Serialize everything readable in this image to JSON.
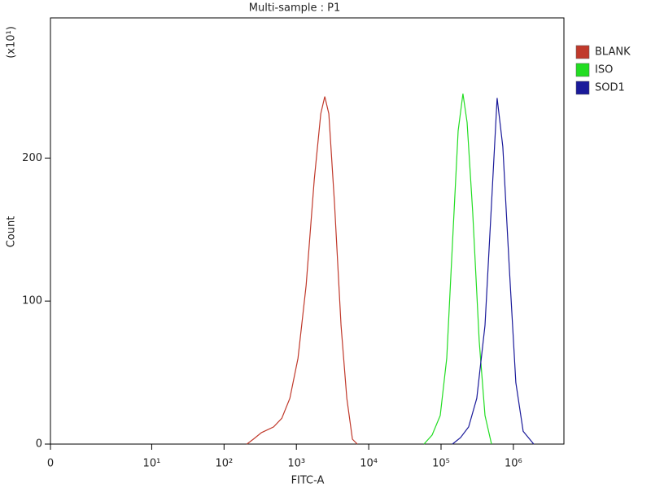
{
  "chart_data": {
    "type": "line",
    "title": "Multi-sample : P1",
    "x_label": "FITC-A",
    "y_label": "Count",
    "y_multiplier": "(x10¹)",
    "xscale": "log",
    "xlim": [
      0,
      5000000
    ],
    "xticks": [
      0,
      {
        "value": 10,
        "label": "10¹"
      },
      {
        "value": 100,
        "label": "10²"
      },
      {
        "value": 1000,
        "label": "10³"
      },
      {
        "value": 10000,
        "label": "10⁴"
      },
      {
        "value": 100000,
        "label": "10⁵"
      },
      {
        "value": 1000000,
        "label": "10⁶"
      }
    ],
    "ylim": [
      0,
      298
    ],
    "yticks": [
      0,
      100,
      200
    ],
    "legend": "right",
    "series": [
      {
        "name": "BLANK",
        "color": "#c0392b",
        "x": [
          207,
          254,
          329,
          484,
          628,
          813,
          1053,
          1364,
          1766,
          2174,
          2472,
          2812,
          3373,
          4149,
          4976,
          5961,
          6964
        ],
        "values": [
          0,
          3.4,
          8,
          12,
          18,
          32,
          60,
          111,
          185,
          231,
          243,
          231,
          168,
          83,
          32,
          3.4,
          0
        ]
      },
      {
        "name": "ISO",
        "color": "#22dd22",
        "x": [
          58100,
          75200,
          97500,
          120000,
          143700,
          172200,
          201000,
          229000,
          274000,
          337000,
          405000,
          498000
        ],
        "values": [
          0,
          6.3,
          20,
          60,
          140,
          219,
          245,
          225,
          162,
          72,
          20,
          0
        ]
      },
      {
        "name": "SOD1",
        "color": "#1a1a9a",
        "x": [
          143700,
          186000,
          241000,
          312000,
          405000,
          498000,
          596000,
          714000,
          879000,
          1081000,
          1365000,
          1910000
        ],
        "values": [
          0,
          4.5,
          12,
          32,
          83,
          168,
          242,
          208,
          123,
          43,
          9,
          0
        ]
      }
    ]
  }
}
